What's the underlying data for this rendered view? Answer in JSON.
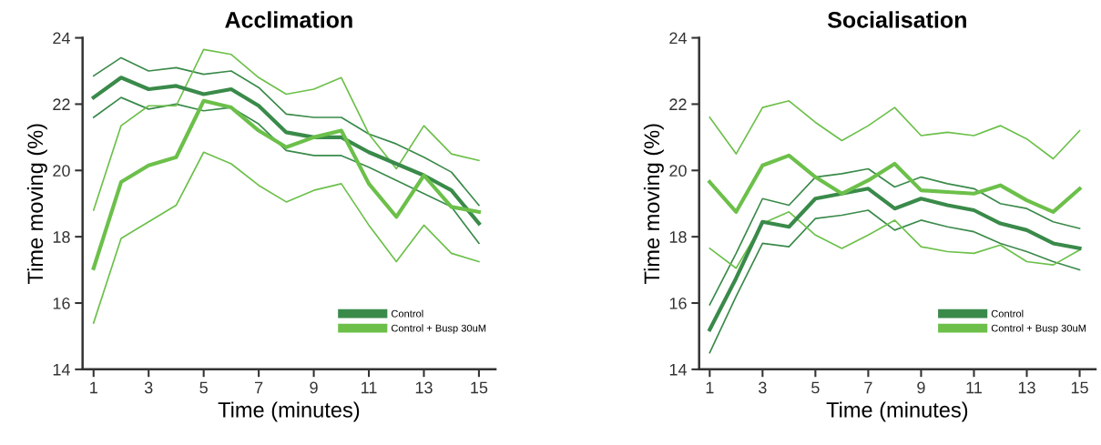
{
  "chart_data": [
    {
      "type": "line",
      "title": "Acclimation",
      "xlabel": "Time (minutes)",
      "ylabel": "Time moving (%)",
      "x": [
        1,
        2,
        3,
        4,
        5,
        6,
        7,
        8,
        9,
        10,
        11,
        12,
        13,
        14,
        15
      ],
      "xlim": [
        0.6,
        15.6
      ],
      "xticks": [
        1,
        3,
        5,
        7,
        9,
        11,
        13,
        15
      ],
      "ylim": [
        14,
        24
      ],
      "yticks": [
        14,
        16,
        18,
        20,
        22,
        24
      ],
      "grid": false,
      "legend": "bottom right",
      "marker": "none",
      "line_style": "solid",
      "series": [
        {
          "color": "#3a8a4a",
          "values": [
            22.85,
            23.4,
            23.0,
            23.1,
            22.9,
            23.0,
            22.5,
            21.7,
            21.6,
            21.6,
            21.1,
            20.8,
            20.4,
            19.95,
            18.95
          ]
        },
        {
          "color": "#3a8a4a",
          "values": [
            21.6,
            22.2,
            21.85,
            22.0,
            21.8,
            21.9,
            21.4,
            20.6,
            20.45,
            20.45,
            20.1,
            19.7,
            19.3,
            18.9,
            17.8
          ]
        },
        {
          "color": "#6cc04a",
          "values": [
            18.8,
            21.35,
            21.95,
            21.95,
            23.65,
            23.5,
            22.8,
            22.3,
            22.45,
            22.8,
            21.1,
            20.05,
            21.35,
            20.5,
            20.3
          ]
        },
        {
          "color": "#6cc04a",
          "values": [
            15.4,
            17.95,
            18.45,
            18.95,
            20.55,
            20.2,
            19.55,
            19.05,
            19.4,
            19.6,
            18.35,
            17.25,
            18.35,
            17.5,
            17.25
          ]
        },
        {
          "name": "Control",
          "color": "#3a8a4a",
          "values": [
            22.2,
            22.8,
            22.45,
            22.55,
            22.3,
            22.45,
            21.95,
            21.15,
            21.0,
            21.0,
            20.55,
            20.2,
            19.85,
            19.4,
            18.4
          ]
        },
        {
          "name": "Control + Busp 30uM",
          "color": "#6cc04a",
          "values": [
            17.05,
            19.65,
            20.15,
            20.4,
            22.1,
            21.9,
            21.2,
            20.7,
            21.0,
            21.2,
            19.6,
            18.6,
            19.85,
            18.9,
            18.75
          ]
        }
      ]
    },
    {
      "type": "line",
      "title": "Socialisation",
      "xlabel": "Time (minutes)",
      "ylabel": "Time moving (%)",
      "x": [
        1,
        2,
        3,
        4,
        5,
        6,
        7,
        8,
        9,
        10,
        11,
        12,
        13,
        14,
        15
      ],
      "xlim": [
        0.6,
        15.6
      ],
      "xticks": [
        1,
        3,
        5,
        7,
        9,
        11,
        13,
        15
      ],
      "ylim": [
        14,
        24
      ],
      "yticks": [
        14,
        16,
        18,
        20,
        22,
        24
      ],
      "grid": false,
      "legend": "bottom right",
      "marker": "none",
      "line_style": "solid",
      "series": [
        {
          "color": "#3a8a4a",
          "values": [
            15.95,
            17.5,
            19.15,
            18.95,
            19.8,
            19.9,
            20.05,
            19.5,
            19.8,
            19.6,
            19.45,
            19.0,
            18.85,
            18.45,
            18.25
          ]
        },
        {
          "color": "#3a8a4a",
          "values": [
            14.5,
            16.2,
            17.8,
            17.7,
            18.55,
            18.65,
            18.8,
            18.2,
            18.5,
            18.3,
            18.15,
            17.8,
            17.55,
            17.25,
            17.0
          ]
        },
        {
          "color": "#6cc04a",
          "values": [
            21.6,
            20.5,
            21.9,
            22.1,
            21.45,
            20.9,
            21.35,
            21.9,
            21.05,
            21.15,
            21.05,
            21.35,
            20.95,
            20.35,
            21.2
          ]
        },
        {
          "color": "#6cc04a",
          "values": [
            17.65,
            17.05,
            18.4,
            18.75,
            18.05,
            17.65,
            18.05,
            18.5,
            17.7,
            17.55,
            17.5,
            17.75,
            17.25,
            17.15,
            17.6
          ]
        },
        {
          "name": "Control",
          "color": "#3a8a4a",
          "values": [
            15.2,
            16.75,
            18.45,
            18.3,
            19.15,
            19.3,
            19.45,
            18.85,
            19.15,
            18.95,
            18.8,
            18.4,
            18.2,
            17.8,
            17.65
          ]
        },
        {
          "name": "Control + Busp 30uM",
          "color": "#6cc04a",
          "values": [
            19.65,
            18.75,
            20.15,
            20.45,
            19.8,
            19.3,
            19.7,
            20.2,
            19.4,
            19.35,
            19.3,
            19.55,
            19.1,
            18.75,
            19.45
          ]
        }
      ]
    }
  ]
}
